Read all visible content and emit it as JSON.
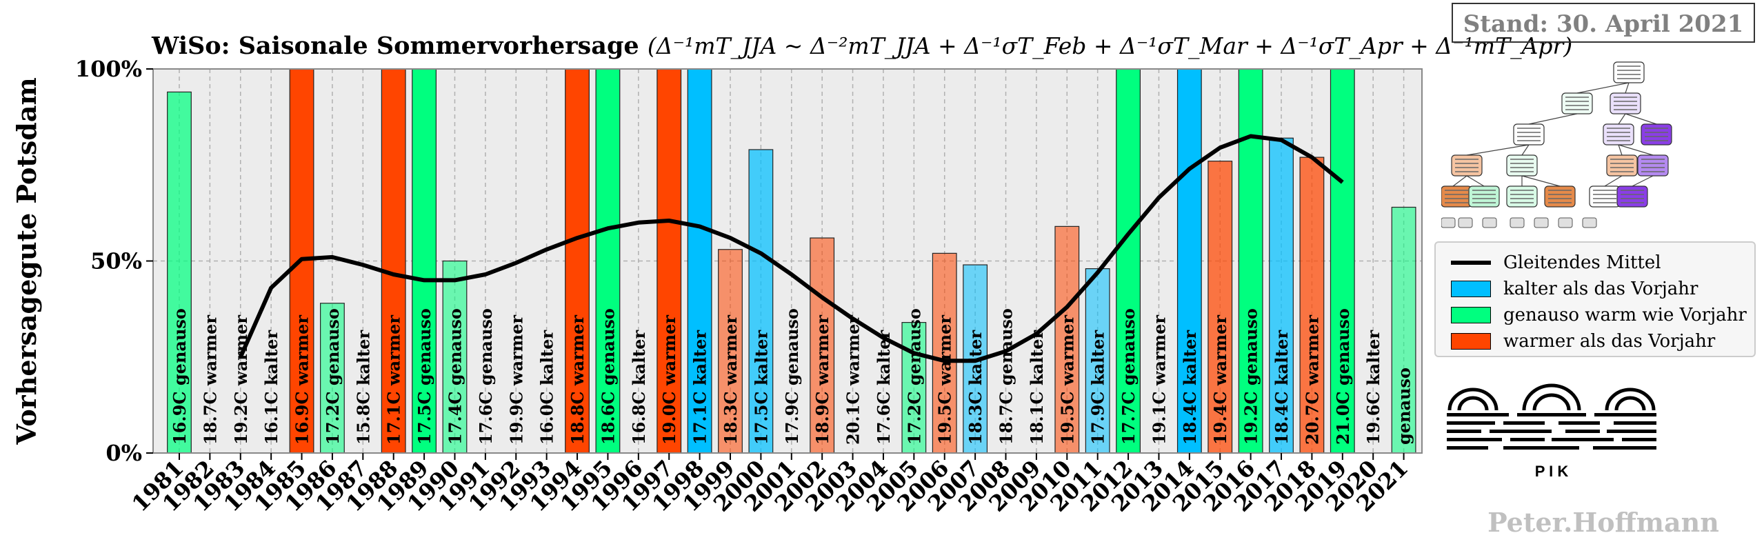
{
  "header": {
    "title_main": "WiSo: Saisonale Sommervorhersage",
    "title_formula": "(Δ⁻¹mT_JJA ~ Δ⁻²mT_JJA + Δ⁻¹σT_Feb + Δ⁻¹σT_Mar + Δ⁻¹σT_Apr + Δ⁻¹mT_Apr)",
    "stand": "Stand: 30. April 2021"
  },
  "legend": {
    "items": [
      {
        "label": "Gleitendes Mittel",
        "kind": "line",
        "color": "#000000"
      },
      {
        "label": "kalter als das Vorjahr",
        "kind": "patch",
        "color": "#00bfff"
      },
      {
        "label": "genauso warm wie Vorjahr",
        "kind": "patch",
        "color": "#00ff7f"
      },
      {
        "label": "warmer als das Vorjahr",
        "kind": "patch",
        "color": "#ff4500"
      }
    ]
  },
  "footer": {
    "author": "Peter.Hoffmann",
    "logo_text": "P  I  K"
  },
  "chart_data": {
    "type": "bar",
    "title": "WiSo: Saisonale Sommervorhersage",
    "ylabel": "Vorhersagegute Potsdam",
    "xlabel": "",
    "ylim": [
      0,
      100
    ],
    "yticks": [
      "0%",
      "50%",
      "100%"
    ],
    "colors": {
      "kalter": "#00bfff",
      "genauso": "#00ff7f",
      "warmer": "#ff4500"
    },
    "categories": [
      "1981",
      "1982",
      "1983",
      "1984",
      "1985",
      "1986",
      "1987",
      "1988",
      "1989",
      "1990",
      "1991",
      "1992",
      "1993",
      "1994",
      "1995",
      "1996",
      "1997",
      "1998",
      "1999",
      "2000",
      "2001",
      "2002",
      "2003",
      "2004",
      "2005",
      "2006",
      "2007",
      "2008",
      "2009",
      "2010",
      "2011",
      "2012",
      "2013",
      "2014",
      "2015",
      "2016",
      "2017",
      "2018",
      "2019",
      "2020",
      "2021"
    ],
    "values": [
      94,
      0,
      0,
      0,
      100,
      39,
      0,
      100,
      100,
      50,
      0,
      0,
      0,
      100,
      100,
      0,
      100,
      100,
      53,
      79,
      0,
      56,
      0,
      0,
      34,
      52,
      49,
      0,
      0,
      59,
      48,
      100,
      0,
      100,
      76,
      100,
      82,
      77,
      100,
      0,
      64
    ],
    "classes": [
      "genauso",
      "warmer",
      "warmer",
      "kalter",
      "warmer",
      "genauso",
      "kalter",
      "warmer",
      "genauso",
      "genauso",
      "genauso",
      "warmer",
      "kalter",
      "warmer",
      "genauso",
      "kalter",
      "warmer",
      "kalter",
      "warmer",
      "kalter",
      "genauso",
      "warmer",
      "warmer",
      "kalter",
      "genauso",
      "warmer",
      "kalter",
      "genauso",
      "kalter",
      "warmer",
      "kalter",
      "genauso",
      "warmer",
      "kalter",
      "warmer",
      "genauso",
      "kalter",
      "warmer",
      "genauso",
      "kalter",
      "genauso"
    ],
    "bar_labels": [
      "16.9C genauso",
      "18.7C warmer",
      "19.2C warmer",
      "16.1C kalter",
      "16.9C warmer",
      "17.2C genauso",
      "15.8C kalter",
      "17.1C warmer",
      "17.5C genauso",
      "17.4C genauso",
      "17.6C genauso",
      "19.9C warmer",
      "16.0C kalter",
      "18.8C warmer",
      "18.6C genauso",
      "16.8C kalter",
      "19.0C warmer",
      "17.1C kalter",
      "18.3C warmer",
      "17.5C kalter",
      "17.9C genauso",
      "18.9C warmer",
      "20.1C warmer",
      "17.6C kalter",
      "17.2C genauso",
      "19.5C warmer",
      "18.3C kalter",
      "18.7C genauso",
      "18.1C kalter",
      "19.5C warmer",
      "17.9C kalter",
      "17.7C genauso",
      "19.1C warmer",
      "18.4C kalter",
      "19.4C warmer",
      "19.2C genauso",
      "18.4C kalter",
      "20.7C warmer",
      "21.0C genauso",
      "19.6C kalter",
      "genauso"
    ],
    "moving_average": [
      null,
      null,
      25,
      43,
      50.5,
      51,
      49,
      46.5,
      45,
      45,
      46.5,
      49.5,
      53,
      56,
      58.5,
      60,
      60.5,
      59,
      56,
      52,
      46.5,
      40.5,
      35,
      30,
      26,
      24,
      24,
      26.5,
      31,
      38,
      47,
      57,
      66.5,
      74,
      79.5,
      82.5,
      81.5,
      77,
      70.5,
      null,
      null
    ]
  }
}
